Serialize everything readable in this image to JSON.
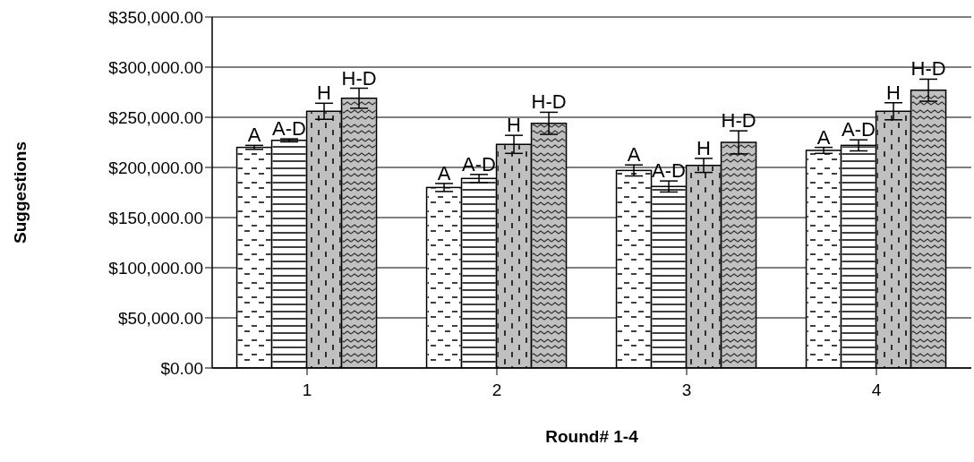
{
  "chart_data": {
    "type": "bar",
    "xlabel": "Round# 1-4",
    "ylabel": "Suggestions",
    "categories": [
      "1",
      "2",
      "3",
      "4"
    ],
    "series": [
      {
        "name": "A",
        "color": "#ffffff",
        "values": [
          220000,
          180000,
          197000,
          217000
        ],
        "errors": [
          2000,
          4000,
          5500,
          3000
        ]
      },
      {
        "name": "A-D",
        "color": "#ffffff",
        "values": [
          227000,
          189000,
          181000,
          222000
        ],
        "errors": [
          1500,
          4000,
          5500,
          5500
        ]
      },
      {
        "name": "H",
        "color": "#c0c0c0",
        "values": [
          256000,
          223000,
          202000,
          256000
        ],
        "errors": [
          8000,
          9000,
          7000,
          8500
        ]
      },
      {
        "name": "H-D",
        "color": "#c0c0c0",
        "values": [
          269000,
          244000,
          225000,
          277000
        ],
        "errors": [
          10000,
          11000,
          11500,
          11000
        ]
      }
    ],
    "ylim": [
      0,
      350000
    ],
    "yticks": [
      {
        "value": 0,
        "label": "$0.00"
      },
      {
        "value": 50000,
        "label": "$50,000.00"
      },
      {
        "value": 100000,
        "label": "$100,000.00"
      },
      {
        "value": 150000,
        "label": "$150,000.00"
      },
      {
        "value": 200000,
        "label": "$200,000.00"
      },
      {
        "value": 250000,
        "label": "$250,000.00"
      },
      {
        "value": 300000,
        "label": "$300,000.00"
      },
      {
        "value": 350000,
        "label": "$350,000.00"
      }
    ],
    "grid": "y",
    "legend": false
  }
}
